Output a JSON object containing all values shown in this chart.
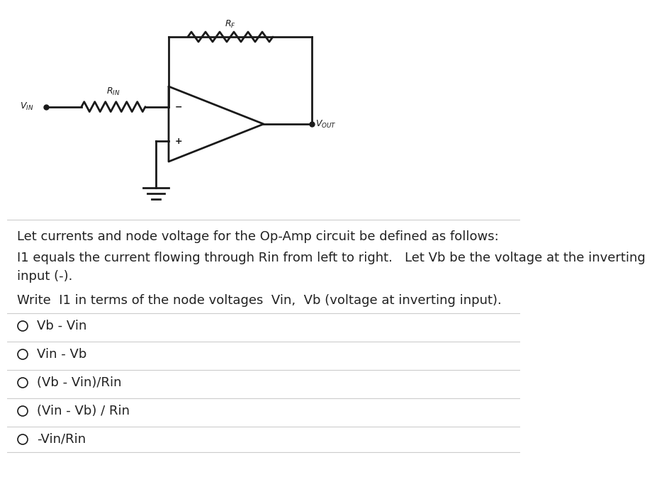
{
  "bg_color": "#ffffff",
  "text_color": "#000000",
  "gray_text": "#5a5a5a",
  "line_color": "#1a1a1a",
  "divider_color": "#cccccc",
  "paragraph1": "Let currents and node voltage for the Op-Amp circuit be defined as follows:",
  "paragraph2": "I1 equals the current flowing through Rin from left to right.   Let Vb be the voltage at the inverting\ninput (-).",
  "paragraph3": "Write  I1 in terms of the node voltages  Vin,  Vb (voltage at inverting input).",
  "choices": [
    "Vb - Vin",
    "Vin - Vb",
    "(Vb - Vin)/Rin",
    "(Vin - Vb) / Rin",
    "-Vin/Rin"
  ],
  "font_size_body": 13,
  "font_size_small": 11,
  "circuit_lw": 2.0
}
